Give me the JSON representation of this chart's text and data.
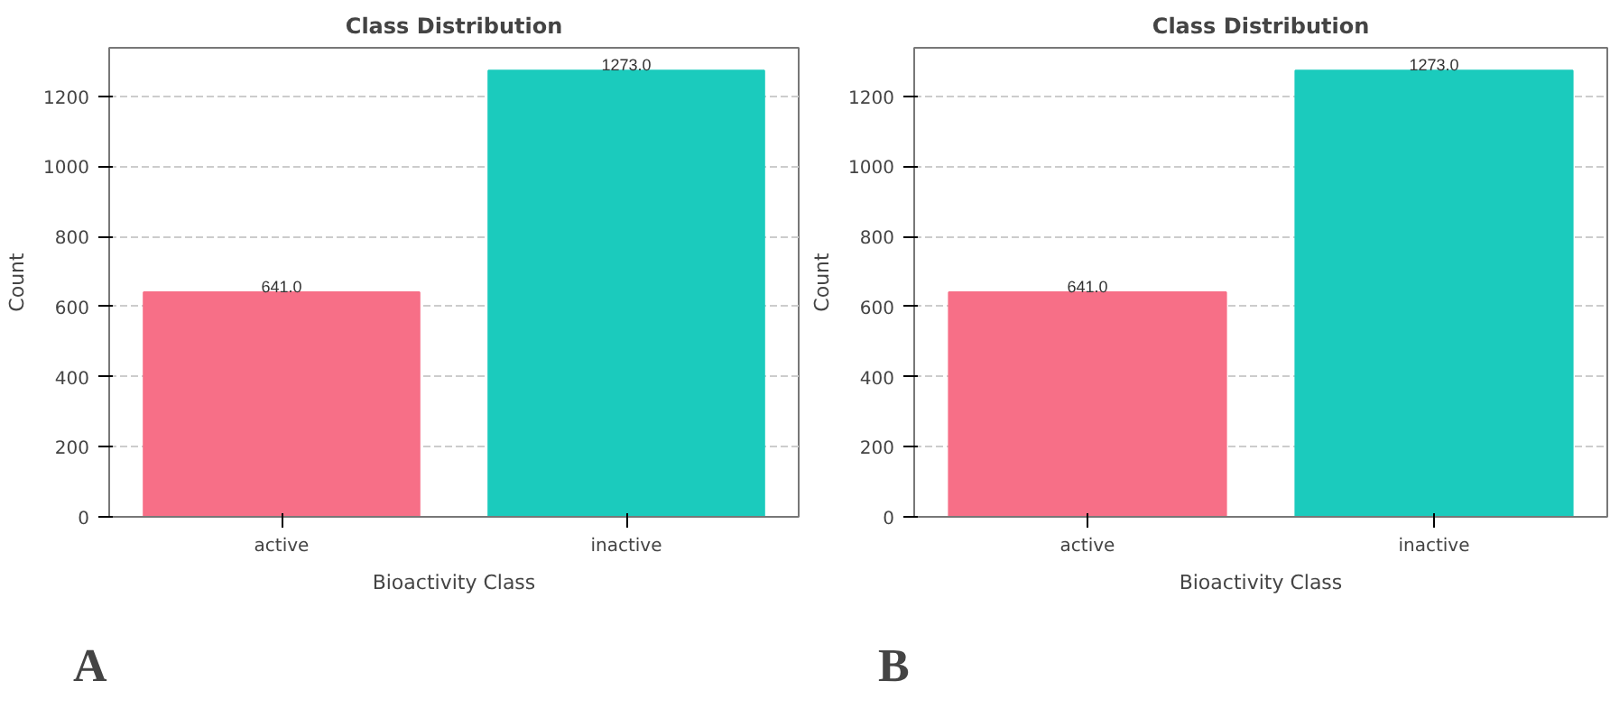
{
  "chart_data": [
    {
      "type": "bar",
      "title": "Class Distribution",
      "xlabel": "Bioactivity Class",
      "ylabel": "Count",
      "categories": [
        "active",
        "inactive"
      ],
      "values": [
        641,
        1273
      ],
      "colors": [
        "#f76f87",
        "#1bcbbd"
      ],
      "value_labels": [
        "641.0",
        "1273.0"
      ],
      "ylim": [
        0,
        1338
      ],
      "yticks": [
        0,
        200,
        400,
        600,
        800,
        1000,
        1200
      ],
      "grid": "y",
      "annotations": [
        "A"
      ]
    },
    {
      "type": "bar",
      "title": "Class Distribution",
      "xlabel": "Bioactivity Class",
      "ylabel": "Count",
      "categories": [
        "active",
        "inactive"
      ],
      "values": [
        641,
        1273
      ],
      "colors": [
        "#f76f87",
        "#1bcbbd"
      ],
      "value_labels": [
        "641.0",
        "1273.0"
      ],
      "ylim": [
        0,
        1338
      ],
      "yticks": [
        0,
        200,
        400,
        600,
        800,
        1000,
        1200
      ],
      "grid": "y",
      "annotations": [
        "B"
      ]
    }
  ]
}
